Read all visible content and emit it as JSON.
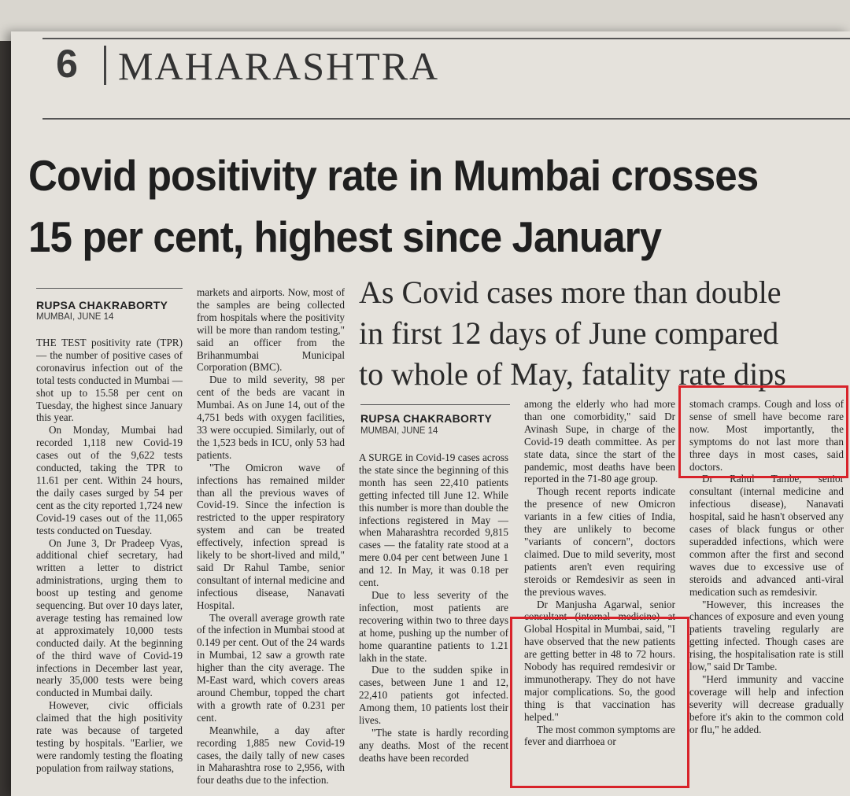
{
  "masthead": {
    "page_number": "6",
    "section": "MAHARASHTRA"
  },
  "article": {
    "headline_line1": "Covid positivity rate in Mumbai crosses",
    "headline_line2": "15 per cent, highest since January",
    "byline": {
      "author": "RUPSA CHAKRABORTY",
      "dateline": "MUMBAI, JUNE 14"
    },
    "col1": [
      "THE TEST positivity rate (TPR) — the number of positive cases of coronavirus infection out of the total tests conducted in Mumbai — shot up to 15.58 per cent on Tuesday, the highest since January this year.",
      "On Monday, Mumbai had recorded 1,118 new Covid-19 cases out of the 9,622 tests conducted, taking the TPR to 11.61 per cent. Within 24 hours, the daily cases surged by 54 per cent as the city reported 1,724 new Covid-19 cases out of the 11,065 tests conducted on Tuesday.",
      "On June 3, Dr Pradeep Vyas, additional chief secretary, had written a letter to district administrations, urging them to boost up testing and genome sequencing. But over 10 days later, average testing has remained low at approximately 10,000 tests conducted daily. At the beginning of the third wave of Covid-19 infections in December last year, nearly 35,000 tests were being conducted in Mumbai daily.",
      "However, civic officials claimed that the high positivity rate was because of targeted testing by hospitals. \"Earlier, we were randomly testing the floating population from railway stations,"
    ],
    "col2": [
      "markets and airports. Now, most of the samples are being collected from hospitals where the positivity will be more than random testing,\" said an officer from the Brihanmumbai Municipal Corporation (BMC).",
      "Due to mild severity, 98 per cent of the beds are vacant in Mumbai. As on June 14, out of the 4,751 beds with oxygen facilities, 33 were occupied. Similarly, out of the 1,523 beds in ICU, only 53 had patients.",
      "\"The Omicron wave of infections has remained milder than all the previous waves of Covid-19. Since the infection is restricted to the upper respiratory system and can be treated effectively, infection spread is likely to be short-lived and mild,\" said Dr Rahul Tambe, senior consultant of internal medicine and infectious disease, Nanavati Hospital.",
      "The overall average growth rate of the infection in Mumbai stood at 0.149 per cent. Out of the 24 wards in Mumbai, 12 saw a growth rate higher than the city average. The M-East ward, which covers areas around Chembur, topped the chart with a growth rate of 0.231 per cent.",
      "Meanwhile, a day after recording 1,885 new Covid-19 cases, the daily tally of new cases in Maharashtra rose to 2,956, with four deaths due to the infection."
    ]
  },
  "article2": {
    "subhead_line1": "As Covid cases more than double",
    "subhead_line2": "in first 12 days of June compared",
    "subhead_line3": "to whole of May, fatality rate dips",
    "byline": {
      "author": "RUPSA CHAKRABORTY",
      "dateline": "MUMBAI, JUNE 14"
    },
    "col3": [
      "A SURGE in Covid-19 cases across the state since the beginning of this month has seen 22,410 patients getting infected till June 12. While this number is more than double the infections registered in May — when Maharashtra recorded 9,815 cases — the fatality rate stood at a mere 0.04 per cent between June 1 and 12. In May, it was 0.18 per cent.",
      "Due to less severity of the infection, most patients are recovering within two to three days at home, pushing up the number of home quarantine patients to 1.21 lakh in the state.",
      "Due to the sudden spike in cases, between June 1 and 12, 22,410 patients got infected. Among them, 10 patients lost their lives.",
      "\"The state is hardly recording any deaths. Most of the recent deaths have been recorded"
    ],
    "col4": [
      "among the elderly who had more than one comorbidity,\" said Dr Avinash Supe, in charge of the Covid-19 death committee. As per state data, since the start of the pandemic, most deaths have been reported in the 71-80 age group.",
      "Though recent reports indicate the presence of new Omicron variants in a few cities of India, they are unlikely to become \"variants of concern\", doctors claimed. Due to mild severity, most patients aren't even requiring steroids or Remdesivir as seen in the previous waves.",
      "Dr Manjusha Agarwal, senior consultant (internal medicine) at Global Hospital in Mumbai, said, \"I have observed that the new patients are getting better in 48 to 72 hours. Nobody has required remdesivir or immunotherapy. They do not have major complications. So, the good thing is that vaccination has helped.\"",
      "The most common symptoms are fever and diarrhoea or"
    ],
    "col5": [
      "stomach cramps. Cough and loss of sense of smell have become rare now. Most importantly, the symptoms do not last more than three days in most cases, said doctors.",
      "Dr Rahul Tambe, senior consultant (internal medicine and infectious disease), Nanavati hospital, said he hasn't observed any cases of black fungus or other superadded infections, which were common after the first and second waves due to excessive use of steroids and advanced anti-viral medication such as remdesivir.",
      "\"However, this increases the chances of exposure and even young patients traveling regularly are getting infected. Though cases are rising, the hospitalisation rate is still low,\" said Dr Tambe.",
      "\"Herd immunity and vaccine coverage will help and infection severity will decrease gradually before it's akin to the common cold or flu,\" he added."
    ]
  },
  "colors": {
    "paper": "#e5e2dc",
    "ink": "#222222",
    "highlight_box": "#d8232a"
  }
}
